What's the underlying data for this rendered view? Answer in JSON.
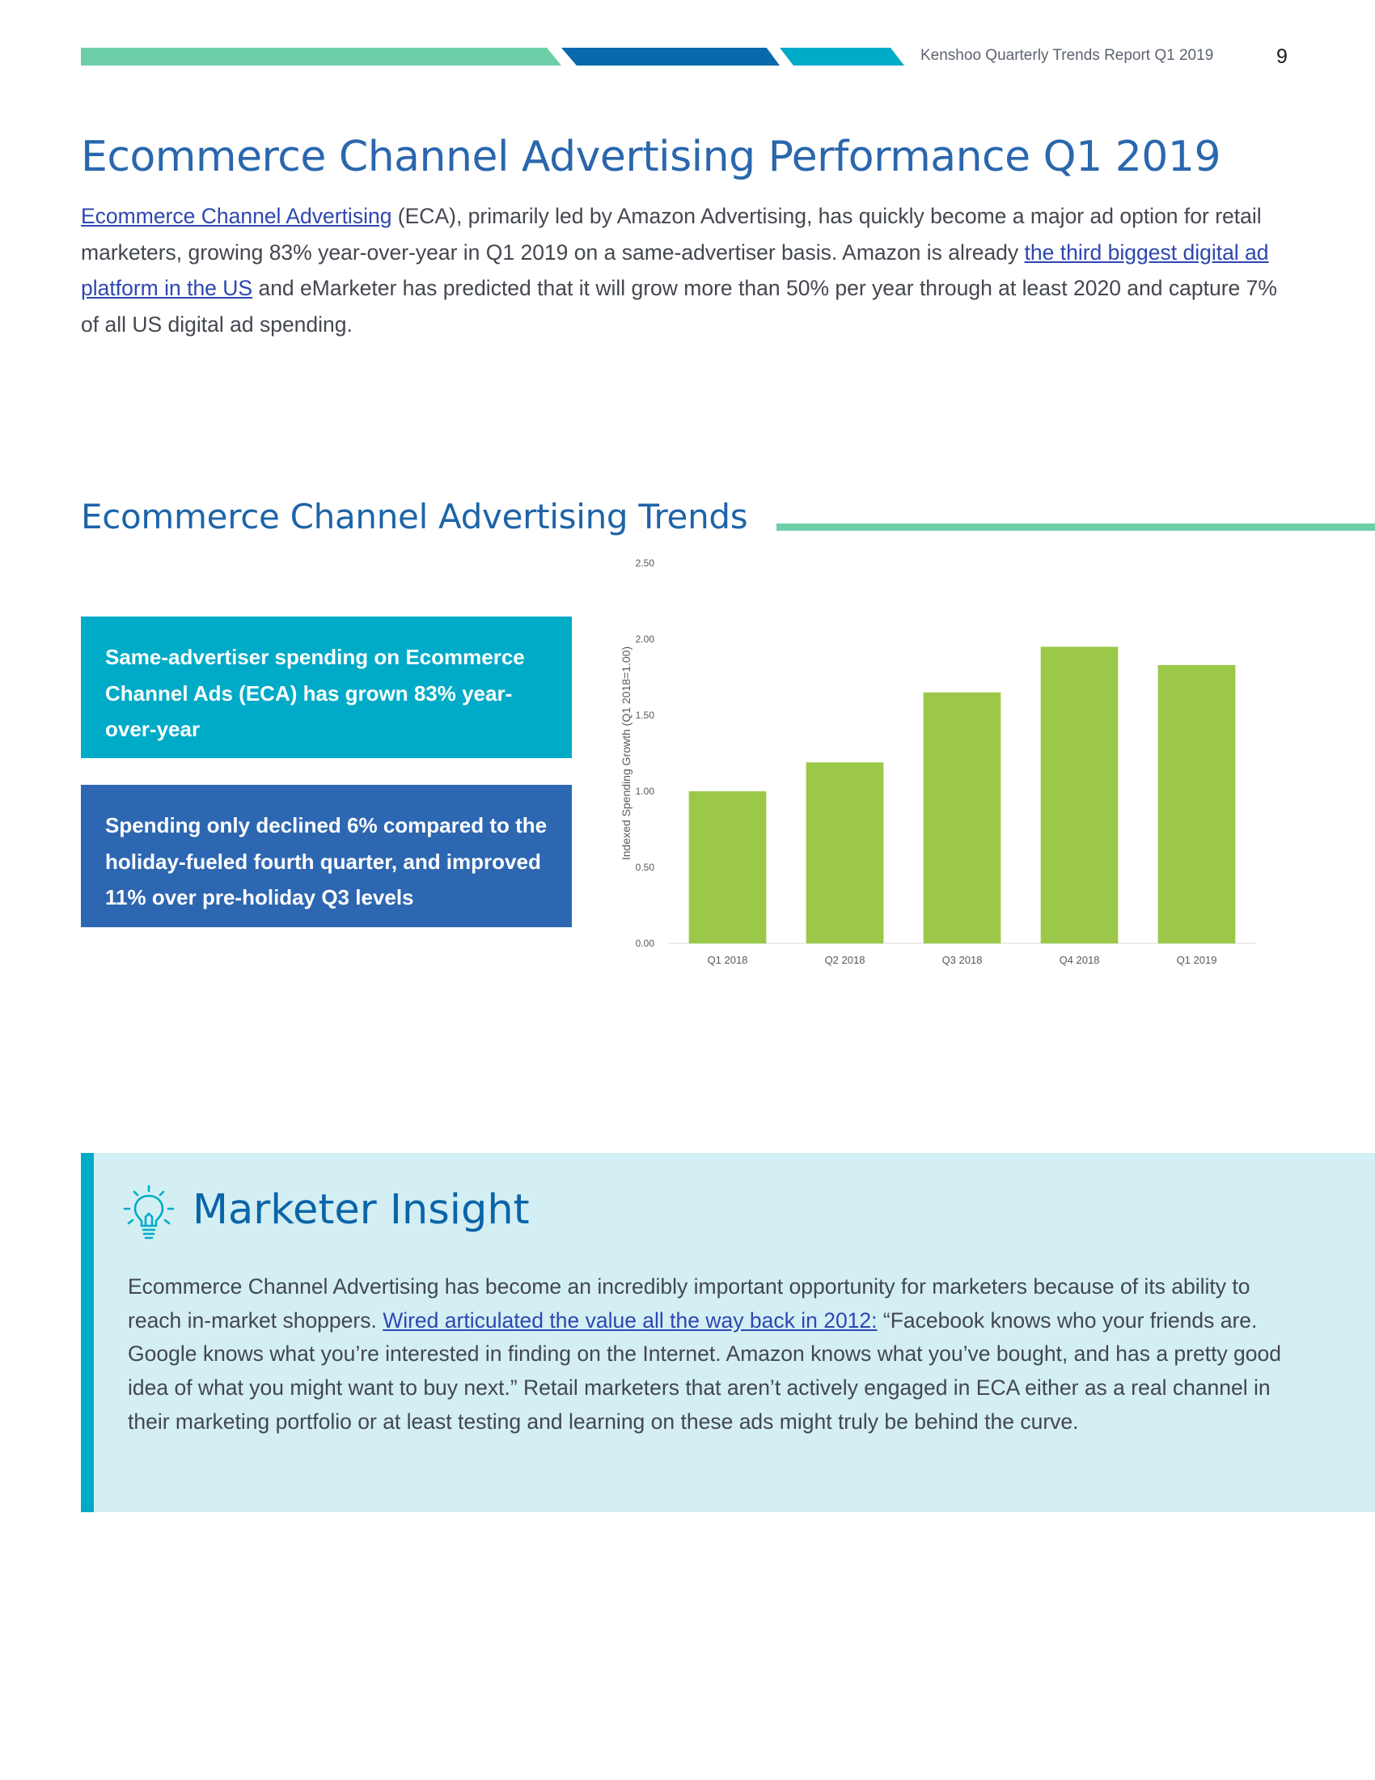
{
  "header": {
    "report_title": "Kenshoo Quarterly Trends Report Q1 2019",
    "page_number": "9",
    "stripe_colors": [
      "#6dcfa8",
      "#0869ad",
      "#00abc8"
    ]
  },
  "page_title": "Ecommerce Channel Advertising Performance Q1 2019",
  "intro": {
    "link1": "Ecommerce Channel Advertising",
    "text1": " (ECA), primarily led by Amazon Advertising, has quickly become a major ad option for retail marketers, growing 83% year-over-year in Q1 2019 on a same-advertiser basis. Amazon is already ",
    "link2": "the third biggest digital ad platform in the US",
    "text2": " and eMarketer has predicted that it will grow more than 50% per year through at least 2020 and capture 7% of all US digital ad spending."
  },
  "trends": {
    "title": "Ecommerce Channel Advertising Trends",
    "callout1": "Same-advertiser spending on Ecommerce Channel Ads (ECA) has grown 83% year-over-year",
    "callout2": "Spending only declined 6% compared to the holiday-fueled fourth quarter, and improved 11% over pre-holiday Q3 levels"
  },
  "chart_data": {
    "type": "bar",
    "categories": [
      "Q1 2018",
      "Q2 2018",
      "Q3 2018",
      "Q4 2018",
      "Q1 2019"
    ],
    "values": [
      1.0,
      1.19,
      1.65,
      1.95,
      1.83
    ],
    "ylabel": "Indexed Spending Growth (Q1 2018=1.00)",
    "xlabel": "",
    "ylim": [
      0,
      2.5
    ],
    "yticks": [
      "0.00",
      "0.50",
      "1.00",
      "1.50",
      "2.00",
      "2.50"
    ],
    "grid": false,
    "bar_color": "#9bc848"
  },
  "insight": {
    "title": "Marketer Insight",
    "text1": "Ecommerce Channel Advertising has become an incredibly important opportunity for marketers because of its ability to reach in-market shoppers. ",
    "link": "Wired articulated the value all the way back in 2012:",
    "text2": " “Facebook knows who your friends are. Google knows what you’re interested in finding on the Internet. Amazon knows what you’ve bought, and has a pretty good idea of what you might want to buy next.” Retail marketers that aren’t actively engaged in ECA either as a real channel in their marketing portfolio or at least testing and learning on these ads might truly be behind the curve.",
    "icon": "lightbulb-icon",
    "accent_color": "#00abc8"
  }
}
